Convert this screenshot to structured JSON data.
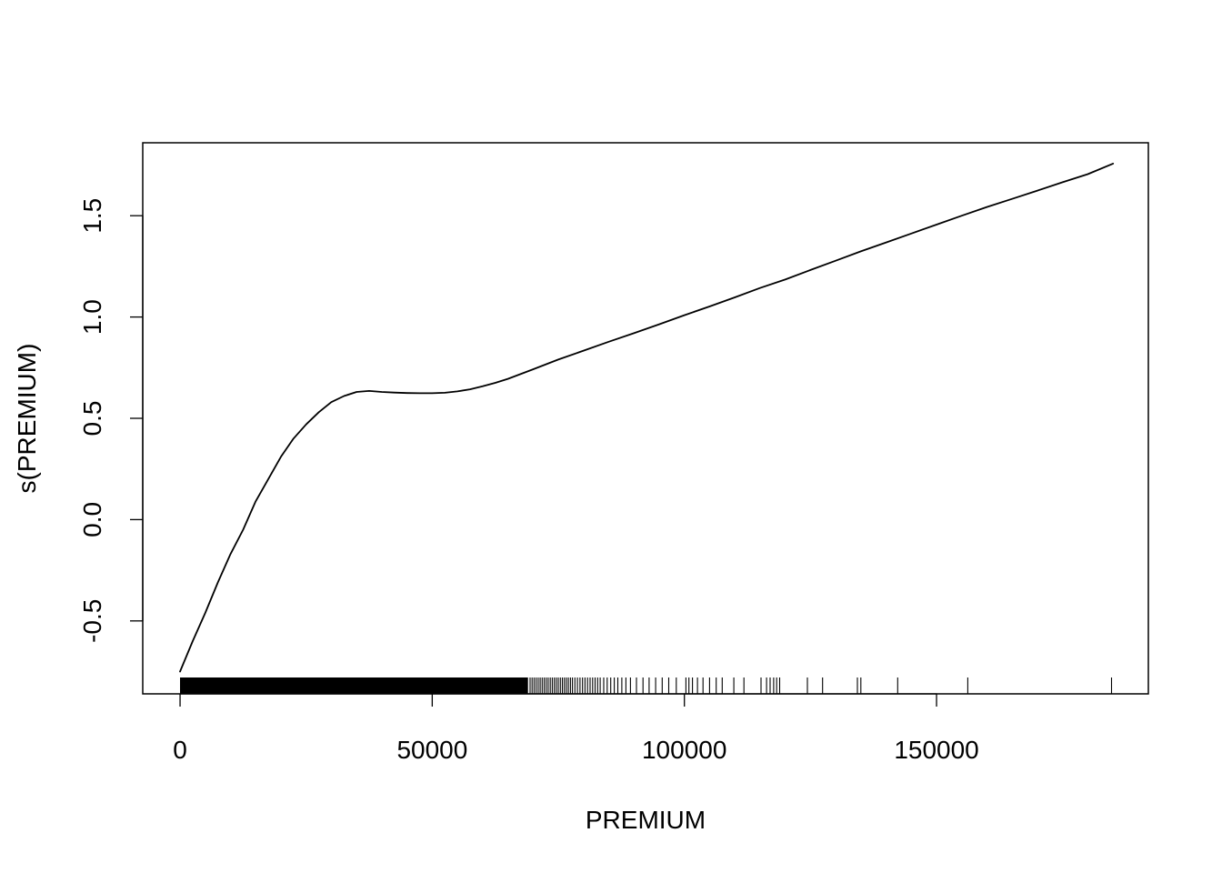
{
  "chart_data": {
    "type": "line",
    "title": "",
    "xlabel": "PREMIUM",
    "ylabel": "s(PREMIUM)",
    "xlim": [
      -7400,
      192000
    ],
    "ylim": [
      -0.86,
      1.86
    ],
    "grid": false,
    "legend": "none",
    "x_ticks": [
      {
        "value": 0,
        "label": "0"
      },
      {
        "value": 50000,
        "label": "50000"
      },
      {
        "value": 100000,
        "label": "100000"
      },
      {
        "value": 150000,
        "label": "150000"
      }
    ],
    "y_ticks": [
      {
        "value": -0.5,
        "label": "-0.5"
      },
      {
        "value": 0.0,
        "label": "0.0"
      },
      {
        "value": 0.5,
        "label": "0.5"
      },
      {
        "value": 1.0,
        "label": "1.0"
      },
      {
        "value": 1.5,
        "label": "1.5"
      }
    ],
    "series": [
      {
        "x": [
          0,
          2500,
          5000,
          7500,
          10000,
          12500,
          15000,
          17500,
          20000,
          22500,
          25000,
          27500,
          30000,
          32500,
          35000,
          37500,
          40000,
          42500,
          45000,
          47500,
          50000,
          52500,
          55000,
          57500,
          60000,
          62500,
          65000,
          70000,
          75000,
          80000,
          85000,
          90000,
          95000,
          100000,
          105000,
          110000,
          115000,
          120000,
          125000,
          130000,
          135000,
          140000,
          145000,
          150000,
          155000,
          160000,
          165000,
          170000,
          175000,
          180000,
          185000
        ],
        "y": [
          -0.75,
          -0.6,
          -0.46,
          -0.31,
          -0.17,
          -0.05,
          0.09,
          0.2,
          0.31,
          0.4,
          0.47,
          0.53,
          0.58,
          0.61,
          0.63,
          0.635,
          0.63,
          0.627,
          0.625,
          0.624,
          0.624,
          0.626,
          0.633,
          0.643,
          0.658,
          0.675,
          0.695,
          0.742,
          0.79,
          0.834,
          0.878,
          0.92,
          0.964,
          1.009,
          1.052,
          1.097,
          1.143,
          1.185,
          1.232,
          1.278,
          1.324,
          1.368,
          1.412,
          1.456,
          1.5,
          1.543,
          1.583,
          1.624,
          1.665,
          1.705,
          1.757
        ]
      }
    ],
    "rug": {
      "dense_range": [
        0,
        69000
      ],
      "x": [
        69400,
        69800,
        70200,
        70600,
        71000,
        71400,
        71800,
        72200,
        72600,
        73000,
        73400,
        73800,
        74200,
        74600,
        75000,
        75400,
        75800,
        76200,
        76600,
        77000,
        77400,
        77800,
        78300,
        78800,
        79300,
        79800,
        80300,
        80800,
        81300,
        81800,
        82300,
        82800,
        83300,
        84000,
        84700,
        85400,
        86100,
        86800,
        87600,
        88400,
        89300,
        90500,
        91800,
        93000,
        94300,
        95600,
        96900,
        98400,
        100300,
        100900,
        101600,
        102600,
        103700,
        105000,
        106300,
        107500,
        109800,
        111800,
        115200,
        116300,
        117000,
        117700,
        118300,
        118900,
        124400,
        127400,
        134300,
        135000,
        142300,
        156200,
        184700
      ]
    }
  }
}
